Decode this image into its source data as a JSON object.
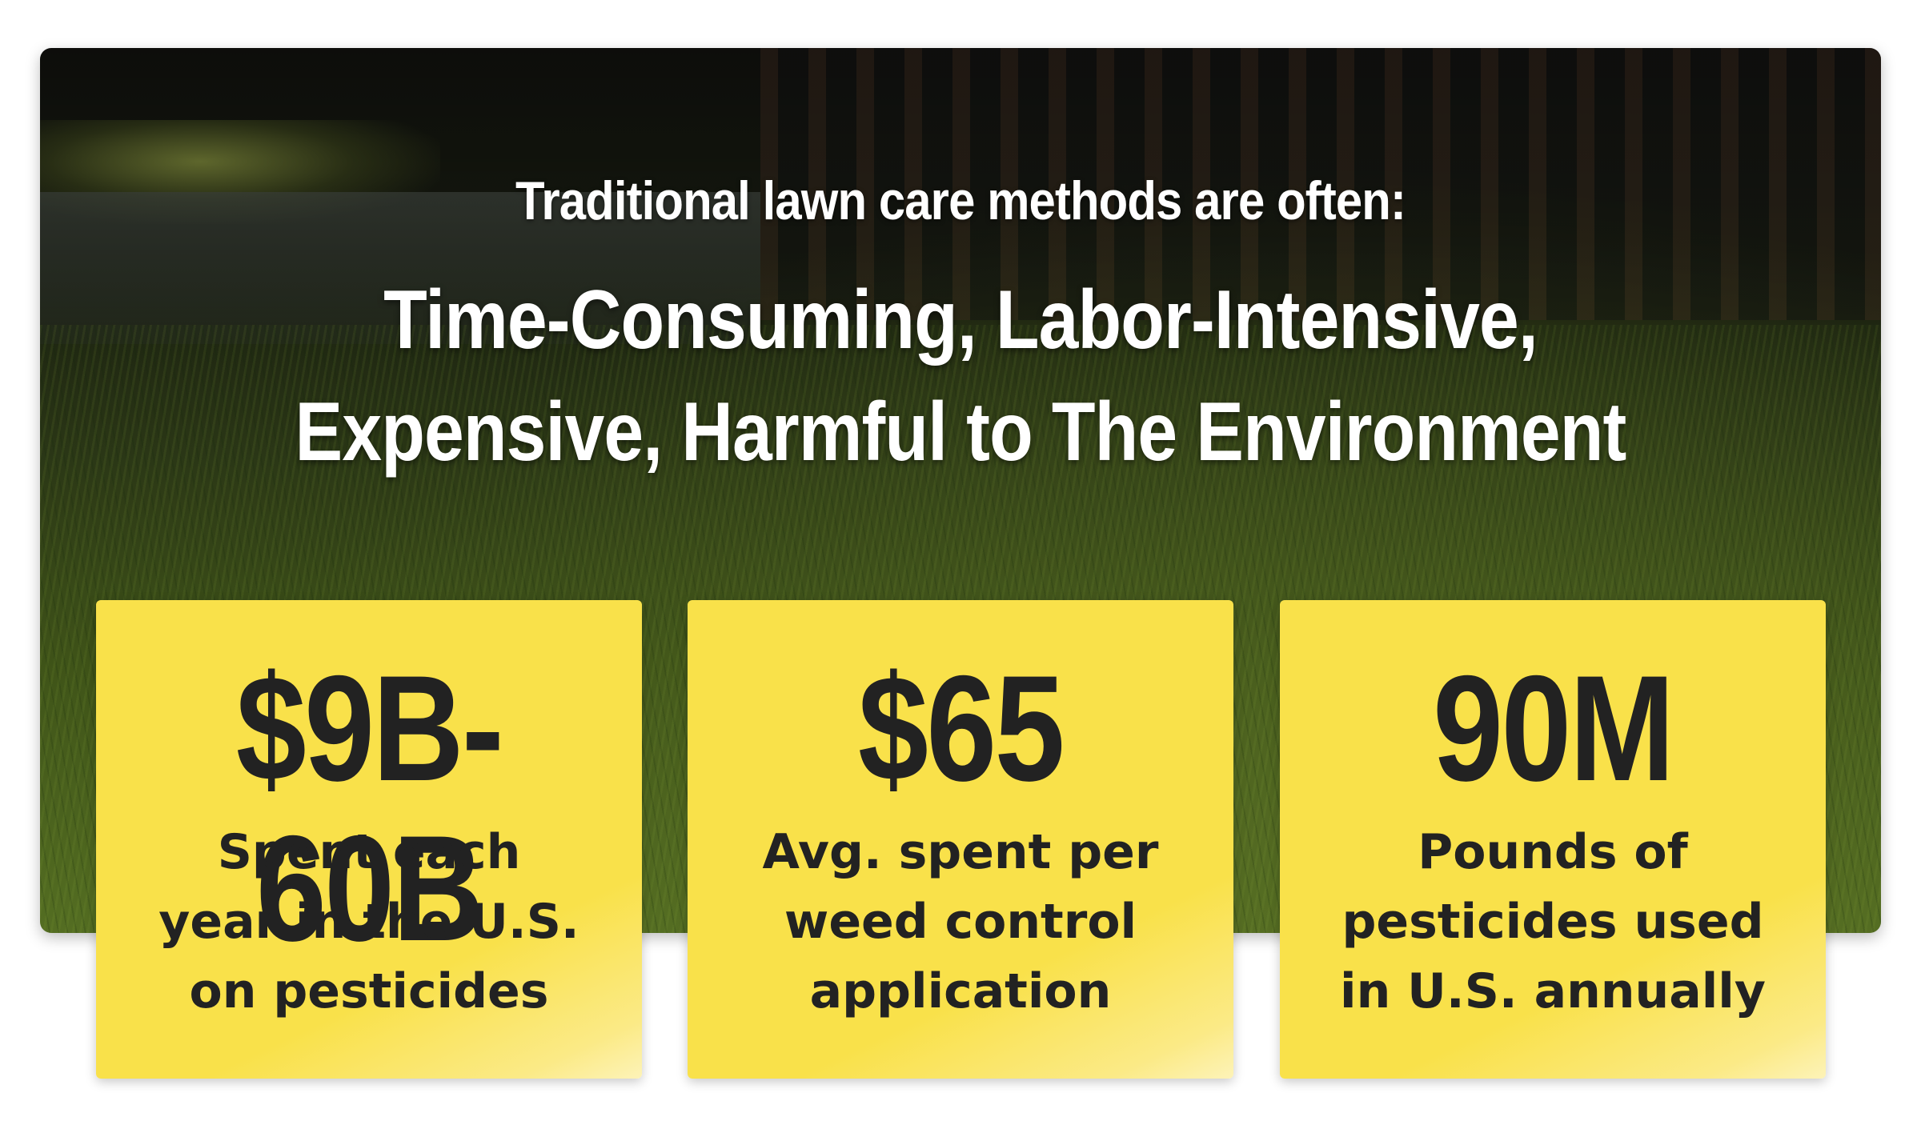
{
  "intro": "Traditional lawn care methods are often:",
  "headline": {
    "line1": "Time-Consuming, Labor-Intensive,",
    "line2": "Expensive, Harmful to The Environment"
  },
  "colors": {
    "card_yellow": "#f9e14a",
    "text_dark": "#222222",
    "text_light": "#ffffff"
  },
  "stats": [
    {
      "value": "$9B-60B",
      "caption": [
        "Spent each",
        "year in the U.S.",
        "on pesticides"
      ]
    },
    {
      "value": "$65",
      "caption": [
        "Avg. spent per",
        "weed control",
        "application"
      ]
    },
    {
      "value": "90M",
      "caption": [
        "Pounds of",
        "pesticides used",
        "in U.S. annually"
      ]
    }
  ]
}
